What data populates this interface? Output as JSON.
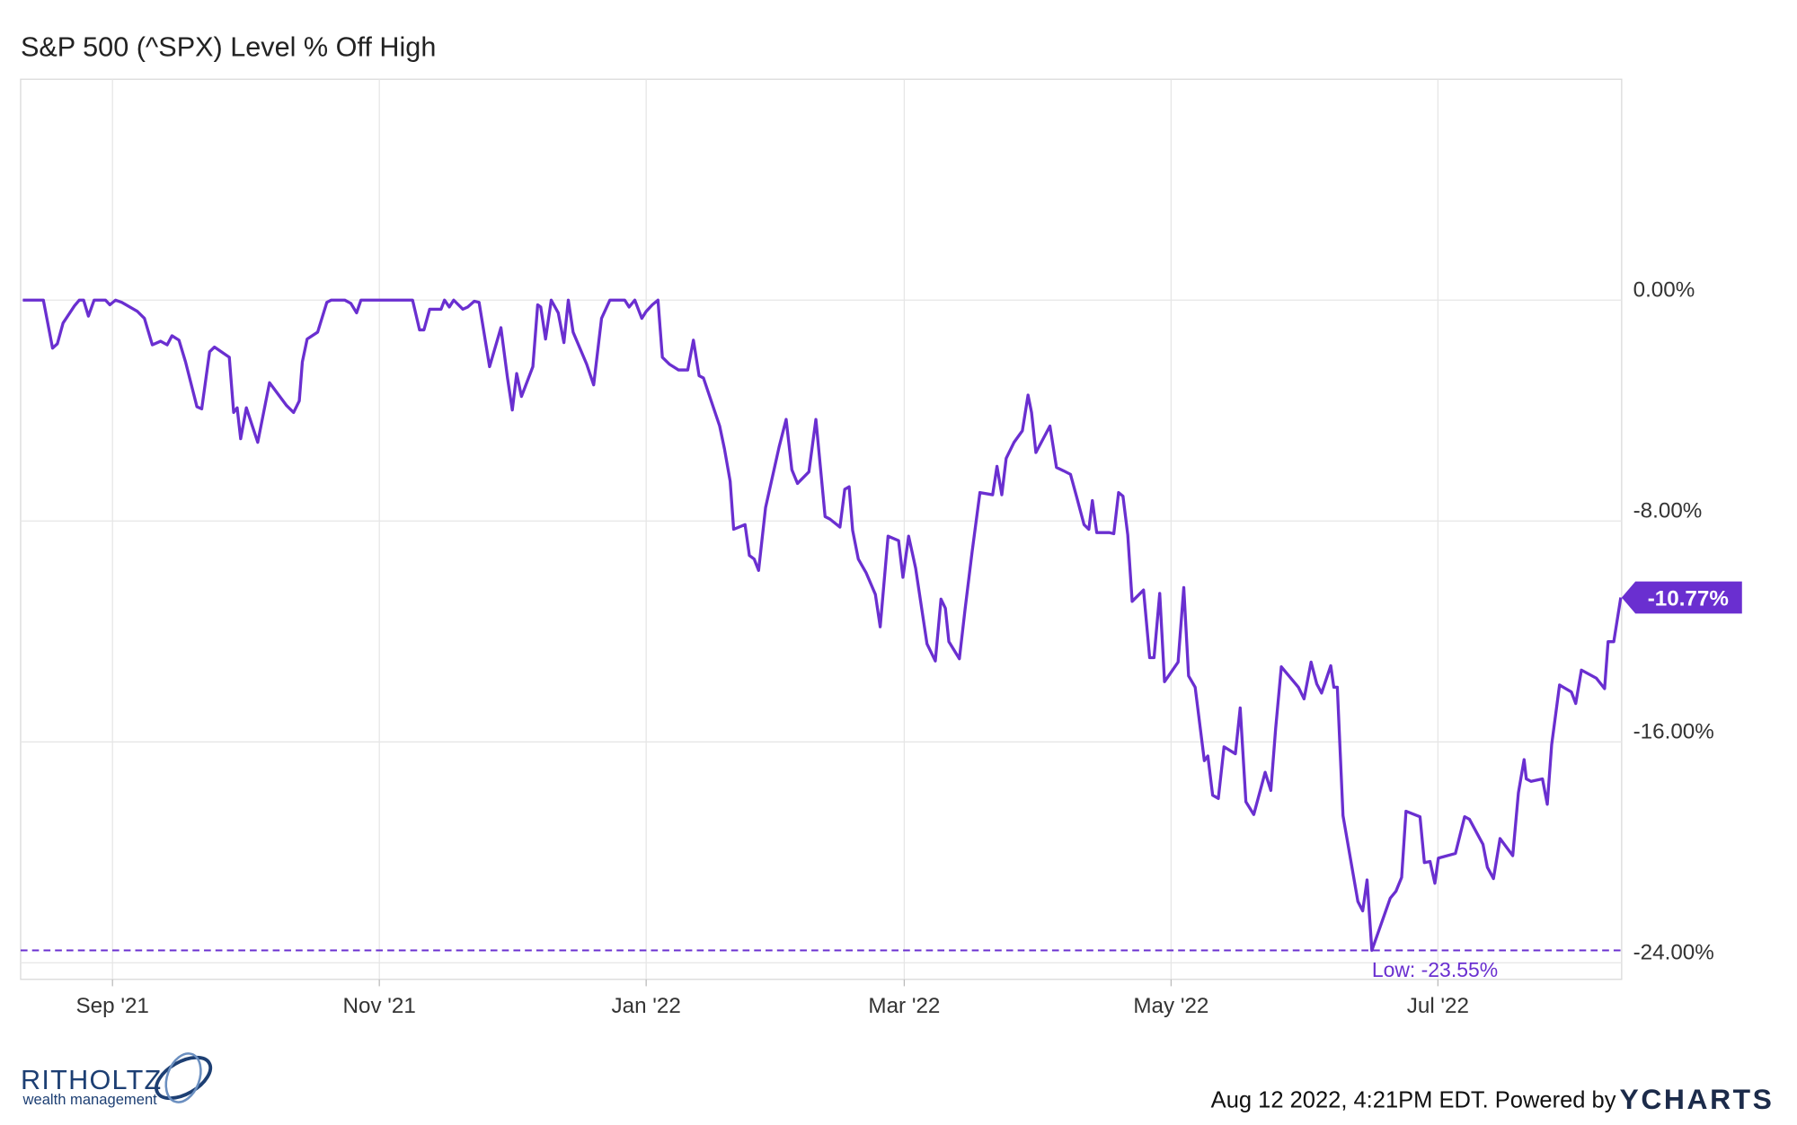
{
  "chart_data": {
    "type": "line",
    "title": "S&P 500 (^SPX) Level % Off High",
    "color": "#6a2fd0",
    "grid": true,
    "xlim": [
      0,
      366
    ],
    "xticks": [
      {
        "value": 21,
        "label": "Sep '21"
      },
      {
        "value": 82,
        "label": "Nov '21"
      },
      {
        "value": 143,
        "label": "Jan '22"
      },
      {
        "value": 202,
        "label": "Mar '22"
      },
      {
        "value": 263,
        "label": "May '22"
      },
      {
        "value": 324,
        "label": "Jul '22"
      }
    ],
    "ylim": [
      -24.6,
      8
    ],
    "yticks": [
      {
        "value": 0,
        "label": "0.00%"
      },
      {
        "value": -8,
        "label": "-8.00%"
      },
      {
        "value": -16,
        "label": "-16.00%"
      },
      {
        "value": -24,
        "label": "-24.00%"
      }
    ],
    "x": [
      0.5,
      5.2,
      7.3,
      8.4,
      9.7,
      12.3,
      13.4,
      14.4,
      15.5,
      16.8,
      19.4,
      20.4,
      21.7,
      23.1,
      26.7,
      28.3,
      30.1,
      32.0,
      33.5,
      34.6,
      36.2,
      37.7,
      40.3,
      41.4,
      43.2,
      44.3,
      47.7,
      48.7,
      49.5,
      50.3,
      51.6,
      54.2,
      56.9,
      60.8,
      62.4,
      63.7,
      64.4,
      65.5,
      67.9,
      70.0,
      71.0,
      74.1,
      75.5,
      76.8,
      77.8,
      81.7,
      88.3,
      89.6,
      91.2,
      92.2,
      93.5,
      96.1,
      96.9,
      98.0,
      99.0,
      101.1,
      102.2,
      103.7,
      104.8,
      107.2,
      109.8,
      111.3,
      112.4,
      113.4,
      114.5,
      117.1,
      118.2,
      118.9,
      120.0,
      121.3,
      122.9,
      124.2,
      125.2,
      126.3,
      129.4,
      131.0,
      132.8,
      134.7,
      138.1,
      139.1,
      140.4,
      142.0,
      143.0,
      144.4,
      145.7,
      146.7,
      148.3,
      150.4,
      152.5,
      153.8,
      155.1,
      156.1,
      159.8,
      160.9,
      162.2,
      163.0,
      165.6,
      166.6,
      167.7,
      168.7,
      170.3,
      173.4,
      175.0,
      176.3,
      177.6,
      180.2,
      181.8,
      183.9,
      185.0,
      187.3,
      188.4,
      189.4,
      190.2,
      191.5,
      193.3,
      195.4,
      196.5,
      198.3,
      200.7,
      201.7,
      203.0,
      204.6,
      207.2,
      209.1,
      210.4,
      211.4,
      212.2,
      214.6,
      215.9,
      217.5,
      219.3,
      222.2,
      223.2,
      224.3,
      225.3,
      227.1,
      229.0,
      230.3,
      231.1,
      232.1,
      235.3,
      236.8,
      238.4,
      240.0,
      241.5,
      243.1,
      244.2,
      245.0,
      246.0,
      248.9,
      249.9,
      251.0,
      252.0,
      253.1,
      254.1,
      256.7,
      258.1,
      259.1,
      260.4,
      261.5,
      264.6,
      265.9,
      267.0,
      268.5,
      270.6,
      271.4,
      272.5,
      273.8,
      275.1,
      277.7,
      278.8,
      280.1,
      281.9,
      284.5,
      285.8,
      286.9,
      288.2,
      292.1,
      293.4,
      295.0,
      296.3,
      297.4,
      299.5,
      300.2,
      301.0,
      302.3,
      305.7,
      306.8,
      307.8,
      308.9,
      313.1,
      314.4,
      315.7,
      316.7,
      319.9,
      320.9,
      322.2,
      323.3,
      324.1,
      328.0,
      330.1,
      331.2,
      334.3,
      335.3,
      336.7,
      338.2,
      341.1,
      342.4,
      343.7,
      344.2,
      345.3,
      347.9,
      349.0,
      350.0,
      351.8,
      354.5,
      355.5,
      356.8,
      360.2,
      362.1,
      362.9,
      364.2,
      365.8
    ],
    "values": [
      0,
      0,
      -1.74,
      -1.58,
      -0.83,
      -0.21,
      0,
      0,
      -0.58,
      0,
      0,
      -0.17,
      0,
      -0.08,
      -0.41,
      -0.66,
      -1.62,
      -1.49,
      -1.62,
      -1.29,
      -1.45,
      -2.24,
      -3.86,
      -3.94,
      -1.87,
      -1.7,
      -2.07,
      -4.07,
      -3.9,
      -5.02,
      -3.9,
      -5.15,
      -2.99,
      -3.82,
      -4.07,
      -3.65,
      -2.24,
      -1.41,
      -1.16,
      -0.08,
      0,
      0,
      -0.12,
      -0.46,
      0,
      0,
      0,
      0,
      -1.08,
      -1.08,
      -0.33,
      -0.33,
      0,
      -0.25,
      0,
      -0.33,
      -0.25,
      -0.04,
      -0.08,
      -2.41,
      -1.0,
      -2.82,
      -3.98,
      -2.66,
      -3.49,
      -2.41,
      -0.17,
      -0.25,
      -1.41,
      0,
      -0.46,
      -1.54,
      0,
      -1.16,
      -2.32,
      -3.07,
      -0.66,
      0,
      0,
      -0.25,
      0,
      -0.66,
      -0.41,
      -0.17,
      0,
      -2.07,
      -2.32,
      -2.53,
      -2.53,
      -1.45,
      -2.74,
      -2.82,
      -4.56,
      -5.39,
      -6.56,
      -8.3,
      -8.13,
      -9.25,
      -9.38,
      -9.79,
      -7.51,
      -5.31,
      -4.32,
      -6.14,
      -6.64,
      -6.22,
      -4.32,
      -7.84,
      -7.93,
      -8.22,
      -6.85,
      -6.76,
      -8.34,
      -9.38,
      -9.88,
      -10.66,
      -11.83,
      -8.55,
      -8.71,
      -10.04,
      -8.55,
      -9.71,
      -12.45,
      -13.07,
      -10.83,
      -11.16,
      -12.37,
      -12.99,
      -11.2,
      -9.13,
      -6.97,
      -7.05,
      -6.02,
      -7.05,
      -5.73,
      -5.15,
      -4.73,
      -3.44,
      -4.07,
      -5.52,
      -4.56,
      -6.06,
      -6.18,
      -6.31,
      -7.18,
      -8.13,
      -8.3,
      -7.26,
      -8.42,
      -8.42,
      -8.46,
      -6.97,
      -7.1,
      -8.51,
      -10.91,
      -10.5,
      -12.95,
      -12.95,
      -10.62,
      -13.82,
      -13.11,
      -10.41,
      -13.61,
      -14.02,
      -16.68,
      -16.51,
      -17.93,
      -18.05,
      -16.18,
      -16.43,
      -14.77,
      -18.17,
      -18.63,
      -17.1,
      -17.76,
      -15.52,
      -13.28,
      -14.02,
      -14.44,
      -13.11,
      -13.9,
      -14.23,
      -13.24,
      -14.02,
      -14.02,
      -18.67,
      -21.78,
      -22.12,
      -21.0,
      -23.55,
      -21.66,
      -21.41,
      -20.91,
      -18.51,
      -18.71,
      -20.37,
      -20.33,
      -21.12,
      -20.21,
      -20.04,
      -18.71,
      -18.8,
      -19.71,
      -20.54,
      -20.95,
      -19.5,
      -20.12,
      -17.84,
      -16.64,
      -17.34,
      -17.43,
      -17.34,
      -18.26,
      -16.1,
      -13.94,
      -14.19,
      -14.61,
      -13.4,
      -13.69,
      -14.07,
      -12.37,
      -12.37,
      -10.77
    ],
    "annotations": [
      {
        "value": -10.77,
        "label": "-10.77%"
      },
      {
        "value": -23.55,
        "label": "Low: -23.55%"
      }
    ]
  },
  "footer": {
    "timestamp": "Aug 12 2022, 4:21PM EDT. Powered by",
    "brand": "YCHARTS",
    "logo_name": "RITHOLTZ",
    "logo_tagline": "wealth management"
  }
}
